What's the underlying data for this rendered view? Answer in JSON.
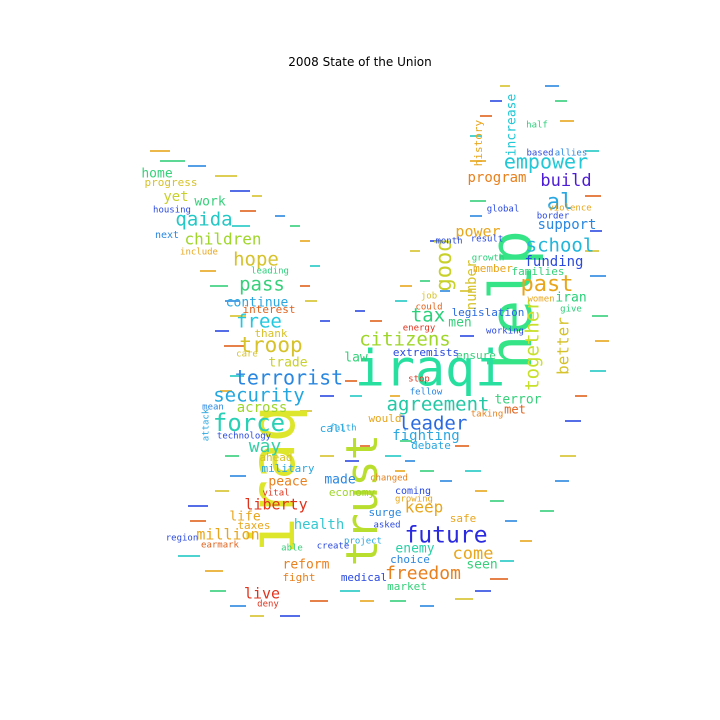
{
  "title": "2008 State of the Union",
  "words": [
    {
      "text": "iraq",
      "color": "#dde62a"
    },
    {
      "text": "help",
      "color": "#36e488"
    },
    {
      "text": "iraqi",
      "color": "#27e0a0"
    },
    {
      "text": "trust",
      "color": "#b9de2d"
    },
    {
      "text": "empower",
      "color": "#22c8d6"
    },
    {
      "text": "build",
      "color": "#4d1cd6"
    },
    {
      "text": "al",
      "color": "#2aa7e0"
    },
    {
      "text": "school",
      "color": "#22b6da"
    },
    {
      "text": "program",
      "color": "#e8801d"
    },
    {
      "text": "support",
      "color": "#2a87e0"
    },
    {
      "text": "funding",
      "color": "#2a49e0"
    },
    {
      "text": "past",
      "color": "#e8a61d"
    },
    {
      "text": "iran",
      "color": "#2ad07a"
    },
    {
      "text": "good",
      "color": "#c8d02a"
    },
    {
      "text": "power",
      "color": "#e8a61d"
    },
    {
      "text": "tax",
      "color": "#2ad07a"
    },
    {
      "text": "citizens",
      "color": "#9fd62a"
    },
    {
      "text": "together",
      "color": "#c8e02a"
    },
    {
      "text": "better",
      "color": "#d6c22a"
    },
    {
      "text": "agreement",
      "color": "#22c8a6"
    },
    {
      "text": "leader",
      "color": "#2a6ae0"
    },
    {
      "text": "terrorist",
      "color": "#2a87e0"
    },
    {
      "text": "security",
      "color": "#22a7e0"
    },
    {
      "text": "force",
      "color": "#2ad0b6"
    },
    {
      "text": "troop",
      "color": "#d6c22a"
    },
    {
      "text": "free",
      "color": "#22c8e0"
    },
    {
      "text": "pass",
      "color": "#36d07a"
    },
    {
      "text": "hope",
      "color": "#d6c22a"
    },
    {
      "text": "children",
      "color": "#9fd62a"
    },
    {
      "text": "qaida",
      "color": "#22c8c6"
    },
    {
      "text": "work",
      "color": "#36d07a"
    },
    {
      "text": "yet",
      "color": "#c8d02a"
    },
    {
      "text": "home",
      "color": "#36d07a"
    },
    {
      "text": "progress",
      "color": "#d6c22a"
    },
    {
      "text": "way",
      "color": "#36d0a6"
    },
    {
      "text": "across",
      "color": "#9fd62a"
    },
    {
      "text": "trade",
      "color": "#c8d02a"
    },
    {
      "text": "continue",
      "color": "#2aa7e0"
    },
    {
      "text": "military",
      "color": "#2aa7e0"
    },
    {
      "text": "peace",
      "color": "#e8801d"
    },
    {
      "text": "liberty",
      "color": "#e0331d"
    },
    {
      "text": "life",
      "color": "#e8a61d"
    },
    {
      "text": "million",
      "color": "#e8a61d"
    },
    {
      "text": "live",
      "color": "#e0331d"
    },
    {
      "text": "health",
      "color": "#36c8d0"
    },
    {
      "text": "reform",
      "color": "#e8801d"
    },
    {
      "text": "fight",
      "color": "#e8801d"
    },
    {
      "text": "made",
      "color": "#2a87e0"
    },
    {
      "text": "economy",
      "color": "#9fd62a"
    },
    {
      "text": "future",
      "color": "#2a2ae0"
    },
    {
      "text": "keep",
      "color": "#e8a61d"
    },
    {
      "text": "come",
      "color": "#e8a61d"
    },
    {
      "text": "freedom",
      "color": "#e8801d"
    },
    {
      "text": "seen",
      "color": "#36d07a"
    },
    {
      "text": "enemy",
      "color": "#2ad0a6"
    },
    {
      "text": "surge",
      "color": "#2a87e0"
    },
    {
      "text": "fighting",
      "color": "#2aa7e0"
    },
    {
      "text": "extremists",
      "color": "#2a49e0"
    },
    {
      "text": "law",
      "color": "#36d07a"
    },
    {
      "text": "terror",
      "color": "#36d07a"
    },
    {
      "text": "met",
      "color": "#e0621d"
    },
    {
      "text": "men",
      "color": "#36d07a"
    },
    {
      "text": "number",
      "color": "#d6c22a"
    },
    {
      "text": "legislation",
      "color": "#2a6ae0"
    },
    {
      "text": "member",
      "color": "#e8a61d"
    },
    {
      "text": "families",
      "color": "#36d07a"
    },
    {
      "text": "increase",
      "color": "#22c8d6"
    },
    {
      "text": "history",
      "color": "#e8a61d"
    },
    {
      "text": "taxes",
      "color": "#e8a61d"
    },
    {
      "text": "would",
      "color": "#e8a61d"
    },
    {
      "text": "debate",
      "color": "#2aa7e0"
    },
    {
      "text": "thank",
      "color": "#d6c22a"
    },
    {
      "text": "call",
      "color": "#2aa7e0"
    },
    {
      "text": "ahead",
      "color": "#d6c22a"
    },
    {
      "text": "next",
      "color": "#2a87e0"
    },
    {
      "text": "housing",
      "color": "#2a49e0"
    },
    {
      "text": "interest",
      "color": "#e0621d"
    },
    {
      "text": "ensure",
      "color": "#36d07a"
    },
    {
      "text": "job",
      "color": "#d6c22a"
    },
    {
      "text": "could",
      "color": "#e0621d"
    },
    {
      "text": "choice",
      "color": "#2a87e0"
    },
    {
      "text": "market",
      "color": "#36d07a"
    },
    {
      "text": "medical",
      "color": "#2a49e0"
    },
    {
      "text": "safe",
      "color": "#e8a61d"
    },
    {
      "text": "coming",
      "color": "#2a49e0"
    },
    {
      "text": "create",
      "color": "#2a49e0"
    },
    {
      "text": "deny",
      "color": "#e0331d"
    },
    {
      "text": "technology",
      "color": "#2a49e0"
    },
    {
      "text": "half",
      "color": "#2ad07a"
    },
    {
      "text": "based",
      "color": "#2a49e0"
    },
    {
      "text": "result",
      "color": "#2a49e0"
    },
    {
      "text": "give",
      "color": "#2ad07a"
    },
    {
      "text": "care",
      "color": "#d6c22a"
    },
    {
      "text": "mean",
      "color": "#2a87e0"
    },
    {
      "text": "leading",
      "color": "#2ad07a"
    },
    {
      "text": "month",
      "color": "#2a49e0"
    },
    {
      "text": "women",
      "color": "#e8a61d"
    },
    {
      "text": "faith",
      "color": "#2aa7e0"
    },
    {
      "text": "taking",
      "color": "#e8801d"
    },
    {
      "text": "energy",
      "color": "#e0331d"
    },
    {
      "text": "stop",
      "color": "#e0331d"
    },
    {
      "text": "working",
      "color": "#2a49e0"
    },
    {
      "text": "include",
      "color": "#e8a61d"
    },
    {
      "text": "border",
      "color": "#2a49e0"
    },
    {
      "text": "growth",
      "color": "#2ad07a"
    },
    {
      "text": "vital",
      "color": "#e0331d"
    },
    {
      "text": "asked",
      "color": "#2a49e0"
    },
    {
      "text": "allies",
      "color": "#2a87e0"
    },
    {
      "text": "growing",
      "color": "#e8a61d"
    },
    {
      "text": "project",
      "color": "#2aa7e0"
    },
    {
      "text": "attack",
      "color": "#2aa7e0"
    },
    {
      "text": "region",
      "color": "#2a49e0"
    },
    {
      "text": "global",
      "color": "#2a49e0"
    },
    {
      "text": "earmark",
      "color": "#e0621d"
    },
    {
      "text": "changed",
      "color": "#e8801d"
    },
    {
      "text": "able",
      "color": "#36d07a"
    },
    {
      "text": "violence",
      "color": "#e8a61d"
    },
    {
      "text": "fellow",
      "color": "#2a87e0"
    }
  ]
}
